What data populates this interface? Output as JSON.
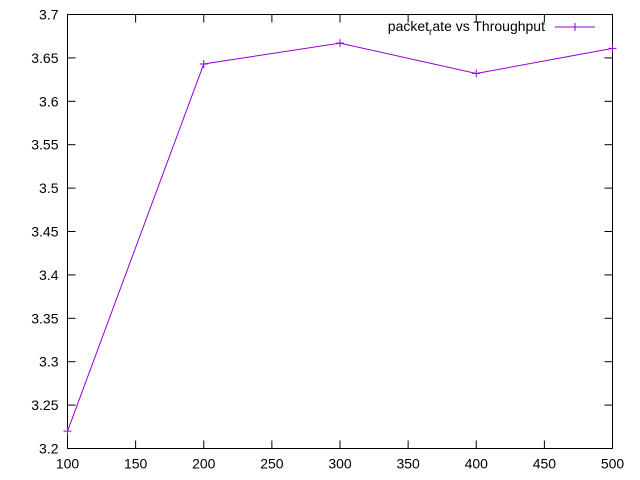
{
  "chart_data": {
    "type": "line",
    "title": "",
    "xlabel": "",
    "ylabel": "",
    "x": [
      100,
      200,
      300,
      400,
      500
    ],
    "series": [
      {
        "name": "packet_rate vs Throughput",
        "legend_main": "packet",
        "legend_sub": "r",
        "legend_rest": "ate vs Throughput",
        "values": [
          3.22,
          3.643,
          3.667,
          3.632,
          3.661
        ],
        "color": "#9400d3",
        "marker": "plus"
      }
    ],
    "xlim": [
      100,
      500
    ],
    "ylim": [
      3.2,
      3.7
    ],
    "xticks": [
      "100",
      "150",
      "200",
      "250",
      "300",
      "350",
      "400",
      "450",
      "500"
    ],
    "yticks": [
      "3.2",
      "3.25",
      "3.3",
      "3.35",
      "3.4",
      "3.45",
      "3.5",
      "3.55",
      "3.6",
      "3.65",
      "3.7"
    ],
    "grid": false,
    "legend_position": "top-right"
  }
}
